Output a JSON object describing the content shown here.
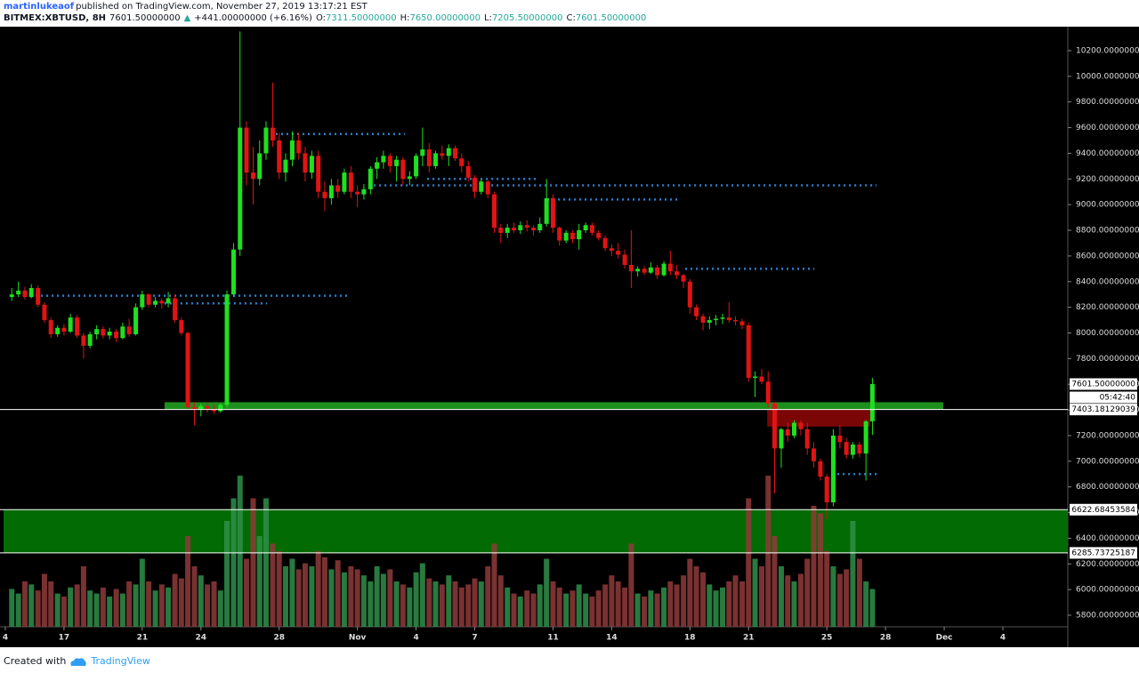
{
  "header": {
    "publisher": "martinlukeaof",
    "published": "published on TradingView.com, November 27, 2019 13:17:21 EST",
    "symbol": "BITMEX:XBTUSD, 8H",
    "last": "7601.50000000",
    "arrow": "▲",
    "change": "+441.00000000 (+6.16%)",
    "o_label": "O:",
    "o": "7311.50000000",
    "h_label": "H:",
    "h": "7650.00000000",
    "l_label": "L:",
    "l": "7205.50000000",
    "c_label": "C:",
    "c": "7601.50000000"
  },
  "footer": {
    "created": "Created with",
    "brand": "TradingView"
  },
  "chart_data": {
    "type": "candlestick",
    "up_color": "#1fe01f",
    "down_color": "#e01414",
    "volume_up_color": "#2f8f4a",
    "volume_down_color": "#8f3a3a",
    "x": [
      14.33,
      14.67,
      15,
      15.33,
      15.67,
      16,
      16.33,
      16.67,
      17,
      17.33,
      17.67,
      18,
      18.33,
      18.67,
      19,
      19.33,
      19.67,
      20,
      20.33,
      20.67,
      21,
      21.33,
      21.67,
      22,
      22.33,
      22.67,
      23,
      23.33,
      23.67,
      24,
      24.33,
      24.67,
      25,
      25.33,
      25.67,
      26,
      26.33,
      26.67,
      27,
      27.33,
      27.67,
      28,
      28.33,
      28.67,
      29,
      29.33,
      29.67,
      30,
      30.33,
      30.67,
      31,
      31.33,
      31.67,
      32,
      32.33,
      32.67,
      33,
      33.33,
      33.67,
      34,
      34.33,
      34.67,
      35,
      35.33,
      35.67,
      36,
      36.33,
      36.67,
      37,
      37.33,
      37.67,
      38,
      38.33,
      38.67,
      39,
      39.33,
      39.67,
      40,
      40.33,
      40.67,
      41,
      41.33,
      41.67,
      42,
      42.33,
      42.67,
      43,
      43.33,
      43.67,
      44,
      44.33,
      44.67,
      45,
      45.33,
      45.67,
      46,
      46.33,
      46.67,
      47,
      47.33,
      47.67,
      48,
      48.33,
      48.67,
      49,
      49.33,
      49.67,
      50,
      50.33,
      50.67,
      51,
      51.33,
      51.67,
      52,
      52.33,
      52.67,
      53,
      53.33,
      53.67,
      54,
      54.33,
      54.67,
      55,
      55.33,
      55.67,
      56,
      56.33,
      56.67,
      57,
      57.33,
      57.67,
      58,
      58.33
    ],
    "ohlc": [
      [
        8280,
        8350,
        8250,
        8300
      ],
      [
        8300,
        8400,
        8280,
        8330
      ],
      [
        8330,
        8360,
        8260,
        8280
      ],
      [
        8280,
        8380,
        8270,
        8350
      ],
      [
        8350,
        8370,
        8200,
        8220
      ],
      [
        8220,
        8240,
        8080,
        8100
      ],
      [
        8100,
        8120,
        7960,
        7990
      ],
      [
        7990,
        8060,
        7970,
        8040
      ],
      [
        8040,
        8070,
        7980,
        8010
      ],
      [
        8010,
        8150,
        8000,
        8120
      ],
      [
        8120,
        8140,
        7960,
        7980
      ],
      [
        7980,
        8000,
        7800,
        7900
      ],
      [
        7900,
        8010,
        7880,
        7990
      ],
      [
        7990,
        8060,
        7950,
        8030
      ],
      [
        8030,
        8050,
        7960,
        7980
      ],
      [
        7980,
        8040,
        7950,
        8010
      ],
      [
        8010,
        8030,
        7930,
        7960
      ],
      [
        7960,
        8080,
        7950,
        8050
      ],
      [
        8050,
        8110,
        7970,
        7990
      ],
      [
        7990,
        8230,
        7980,
        8200
      ],
      [
        8200,
        8330,
        8180,
        8300
      ],
      [
        8300,
        8310,
        8200,
        8220
      ],
      [
        8220,
        8280,
        8200,
        8250
      ],
      [
        8250,
        8270,
        8190,
        8230
      ],
      [
        8230,
        8320,
        8200,
        8270
      ],
      [
        8270,
        8300,
        8080,
        8100
      ],
      [
        8100,
        8120,
        7980,
        8000
      ],
      [
        8000,
        8010,
        7400,
        7420
      ],
      [
        7420,
        7460,
        7280,
        7400
      ],
      [
        7400,
        7450,
        7350,
        7430
      ],
      [
        7430,
        7460,
        7380,
        7410
      ],
      [
        7410,
        7440,
        7370,
        7390
      ],
      [
        7390,
        7450,
        7380,
        7440
      ],
      [
        7440,
        8330,
        7420,
        8300
      ],
      [
        8300,
        8700,
        8280,
        8650
      ],
      [
        8650,
        10350,
        8600,
        9600
      ],
      [
        9600,
        9650,
        9150,
        9250
      ],
      [
        9250,
        9450,
        9000,
        9200
      ],
      [
        9200,
        9500,
        9150,
        9400
      ],
      [
        9400,
        9650,
        9350,
        9600
      ],
      [
        9600,
        9950,
        9450,
        9500
      ],
      [
        9500,
        9560,
        9200,
        9250
      ],
      [
        9250,
        9400,
        9180,
        9350
      ],
      [
        9350,
        9570,
        9300,
        9500
      ],
      [
        9500,
        9560,
        9350,
        9400
      ],
      [
        9400,
        9450,
        9180,
        9250
      ],
      [
        9250,
        9420,
        9200,
        9380
      ],
      [
        9380,
        9420,
        9050,
        9100
      ],
      [
        9100,
        9180,
        8950,
        9050
      ],
      [
        9050,
        9200,
        9000,
        9150
      ],
      [
        9150,
        9200,
        9050,
        9100
      ],
      [
        9100,
        9280,
        9080,
        9250
      ],
      [
        9250,
        9300,
        9050,
        9100
      ],
      [
        9100,
        9150,
        8980,
        9080
      ],
      [
        9080,
        9160,
        9040,
        9120
      ],
      [
        9120,
        9300,
        9080,
        9280
      ],
      [
        9280,
        9370,
        9200,
        9330
      ],
      [
        9330,
        9420,
        9280,
        9380
      ],
      [
        9380,
        9400,
        9250,
        9300
      ],
      [
        9300,
        9380,
        9180,
        9350
      ],
      [
        9350,
        9370,
        9150,
        9200
      ],
      [
        9200,
        9260,
        9150,
        9220
      ],
      [
        9220,
        9400,
        9200,
        9380
      ],
      [
        9380,
        9600,
        9300,
        9430
      ],
      [
        9430,
        9480,
        9250,
        9300
      ],
      [
        9300,
        9420,
        9280,
        9400
      ],
      [
        9400,
        9460,
        9350,
        9380
      ],
      [
        9380,
        9470,
        9300,
        9440
      ],
      [
        9440,
        9460,
        9340,
        9360
      ],
      [
        9360,
        9400,
        9250,
        9300
      ],
      [
        9300,
        9340,
        9180,
        9210
      ],
      [
        9210,
        9230,
        9050,
        9100
      ],
      [
        9100,
        9200,
        9080,
        9180
      ],
      [
        9180,
        9190,
        9050,
        9080
      ],
      [
        9080,
        9100,
        8780,
        8820
      ],
      [
        8820,
        8850,
        8700,
        8780
      ],
      [
        8780,
        8850,
        8740,
        8820
      ],
      [
        8820,
        8860,
        8780,
        8800
      ],
      [
        8800,
        8870,
        8770,
        8840
      ],
      [
        8840,
        8880,
        8790,
        8820
      ],
      [
        8820,
        8840,
        8760,
        8800
      ],
      [
        8800,
        8900,
        8780,
        8850
      ],
      [
        8850,
        9200,
        8830,
        9050
      ],
      [
        9050,
        9080,
        8780,
        8820
      ],
      [
        8820,
        8830,
        8680,
        8720
      ],
      [
        8720,
        8800,
        8700,
        8780
      ],
      [
        8780,
        8800,
        8700,
        8730
      ],
      [
        8730,
        8850,
        8650,
        8800
      ],
      [
        8800,
        8860,
        8780,
        8840
      ],
      [
        8840,
        8860,
        8760,
        8780
      ],
      [
        8780,
        8800,
        8720,
        8740
      ],
      [
        8740,
        8760,
        8640,
        8660
      ],
      [
        8660,
        8690,
        8600,
        8640
      ],
      [
        8640,
        8700,
        8580,
        8610
      ],
      [
        8610,
        8650,
        8500,
        8530
      ],
      [
        8530,
        8800,
        8350,
        8480
      ],
      [
        8480,
        8520,
        8440,
        8500
      ],
      [
        8500,
        8520,
        8450,
        8470
      ],
      [
        8470,
        8550,
        8460,
        8510
      ],
      [
        8510,
        8530,
        8420,
        8450
      ],
      [
        8450,
        8560,
        8440,
        8540
      ],
      [
        8540,
        8640,
        8450,
        8480
      ],
      [
        8480,
        8530,
        8420,
        8450
      ],
      [
        8450,
        8460,
        8350,
        8400
      ],
      [
        8400,
        8420,
        8150,
        8200
      ],
      [
        8200,
        8220,
        8100,
        8130
      ],
      [
        8130,
        8150,
        8020,
        8080
      ],
      [
        8080,
        8130,
        8030,
        8100
      ],
      [
        8100,
        8140,
        8060,
        8110
      ],
      [
        8110,
        8150,
        8070,
        8120
      ],
      [
        8120,
        8240,
        8080,
        8100
      ],
      [
        8100,
        8130,
        8060,
        8090
      ],
      [
        8090,
        8110,
        8030,
        8060
      ],
      [
        8060,
        8080,
        7620,
        7650
      ],
      [
        7650,
        7700,
        7500,
        7660
      ],
      [
        7660,
        7720,
        7600,
        7620
      ],
      [
        7620,
        7700,
        7420,
        7450
      ],
      [
        7450,
        7460,
        6750,
        7100
      ],
      [
        7100,
        7260,
        6950,
        7250
      ],
      [
        7250,
        7300,
        7150,
        7200
      ],
      [
        7200,
        7320,
        7180,
        7300
      ],
      [
        7300,
        7320,
        7200,
        7250
      ],
      [
        7250,
        7300,
        7050,
        7100
      ],
      [
        7100,
        7150,
        6950,
        7000
      ],
      [
        7000,
        7020,
        6850,
        6880
      ],
      [
        6880,
        6900,
        6550,
        6680
      ],
      [
        6680,
        7250,
        6650,
        7200
      ],
      [
        7200,
        7280,
        7100,
        7150
      ],
      [
        7150,
        7180,
        7020,
        7050
      ],
      [
        7050,
        7150,
        7020,
        7130
      ],
      [
        7130,
        7150,
        7030,
        7060
      ],
      [
        7060,
        7320,
        6850,
        7311.5
      ],
      [
        7311.5,
        7650,
        7205.5,
        7601.5
      ]
    ],
    "volume": [
      25,
      22,
      30,
      28,
      24,
      35,
      30,
      22,
      20,
      26,
      28,
      40,
      24,
      22,
      26,
      20,
      25,
      22,
      30,
      28,
      45,
      30,
      24,
      28,
      26,
      35,
      32,
      60,
      40,
      34,
      28,
      30,
      24,
      70,
      85,
      100,
      45,
      85,
      60,
      85,
      55,
      50,
      40,
      45,
      38,
      42,
      40,
      50,
      46,
      38,
      44,
      36,
      40,
      38,
      34,
      30,
      40,
      35,
      38,
      30,
      28,
      26,
      36,
      42,
      32,
      30,
      28,
      34,
      30,
      26,
      28,
      32,
      30,
      40,
      55,
      34,
      26,
      22,
      20,
      24,
      22,
      28,
      45,
      30,
      26,
      22,
      24,
      28,
      22,
      20,
      24,
      28,
      34,
      30,
      26,
      55,
      22,
      20,
      24,
      22,
      26,
      30,
      28,
      34,
      45,
      40,
      36,
      28,
      24,
      26,
      30,
      34,
      30,
      85,
      45,
      40,
      100,
      60,
      40,
      34,
      30,
      35,
      45,
      80,
      75,
      50,
      40,
      35,
      38,
      70,
      45,
      30,
      25
    ],
    "xlim": [
      13.91,
      68.32
    ],
    "xticks": [
      {
        "value": 14,
        "label": "4"
      },
      17,
      21,
      24,
      28,
      {
        "value": 32,
        "label": "Nov"
      },
      {
        "value": 35,
        "label": "4"
      },
      {
        "value": 38,
        "label": "7"
      },
      {
        "value": 42,
        "label": "11"
      },
      {
        "value": 45,
        "label": "14"
      },
      {
        "value": 49,
        "label": "18"
      },
      {
        "value": 52,
        "label": "21"
      },
      {
        "value": 56,
        "label": "25"
      },
      {
        "value": 59,
        "label": "28"
      },
      {
        "value": 62,
        "label": "Dec"
      },
      {
        "value": 65,
        "label": "4"
      }
    ],
    "ylim": [
      5710,
      10373
    ],
    "yticks": [
      {
        "value": 5800,
        "label": "5800.00000000"
      },
      {
        "value": 6000,
        "label": "6000.00000000"
      },
      {
        "value": 6200,
        "label": "6200.00000000"
      },
      {
        "value": 6400,
        "label": "6400.00000000"
      },
      {
        "value": 6600,
        "label": "6600.00000000"
      },
      {
        "value": 6800,
        "label": "6800.00000000"
      },
      {
        "value": 7000,
        "label": "7000.00000000"
      },
      {
        "value": 7200,
        "label": "7200.00000000"
      },
      {
        "value": 7400,
        "label": "7400.00000000"
      },
      {
        "value": 7600,
        "label": "7600.00000000"
      },
      {
        "value": 7800,
        "label": "7800.00000000"
      },
      {
        "value": 8000,
        "label": "8000.00000000"
      },
      {
        "value": 8200,
        "label": "8200.00000000"
      },
      {
        "value": 8400,
        "label": "8400.00000000"
      },
      {
        "value": 8600,
        "label": "8600.00000000"
      },
      {
        "value": 8800,
        "label": "8800.00000000"
      },
      {
        "value": 9000,
        "label": "9000.00000000"
      },
      {
        "value": 9200,
        "label": "9200.00000000"
      },
      {
        "value": 9400,
        "label": "9400.00000000"
      },
      {
        "value": 9600,
        "label": "9600.00000000"
      },
      {
        "value": 9800,
        "label": "9800.00000000"
      },
      {
        "value": 10000,
        "label": "10000.00000000"
      },
      {
        "value": 10200,
        "label": "10200.00000000"
      }
    ],
    "zones": [
      {
        "ylim": [
          6285.73725187,
          6622.68453584
        ],
        "xlim": [
          13.91,
          68.32
        ],
        "color": "#036b03"
      },
      {
        "ylim": [
          7403.18129039,
          7460
        ],
        "xlim": [
          22.14,
          61.95
        ],
        "color": "#1d8f1d"
      },
      {
        "ylim": [
          7270,
          7403.18129039
        ],
        "xlim": [
          52.95,
          58.22
        ],
        "color": "#7a0606"
      }
    ],
    "trend_lines": [
      {
        "y": 8290,
        "x": [
          15.55,
          31.47
        ]
      },
      {
        "y": 8230,
        "x": [
          22.14,
          27.38
        ]
      },
      {
        "y": 9550,
        "x": [
          27.83,
          34.43
        ]
      },
      {
        "y": 9200,
        "x": [
          35.57,
          41.25
        ]
      },
      {
        "y": 9150,
        "x": [
          32.84,
          58.54
        ]
      },
      {
        "y": 9040,
        "x": [
          41.71,
          48.53
        ]
      },
      {
        "y": 8500,
        "x": [
          48.76,
          55.36
        ]
      },
      {
        "y": 6900,
        "x": [
          56.27,
          58.54
        ]
      }
    ],
    "trend_color": "#2a7fd0",
    "levels": [
      7403.18129039,
      6622.68453584,
      6285.73725187
    ],
    "last_price": {
      "value": 7601.5,
      "label": "7601.50000000"
    },
    "countdown": "05:42:40"
  }
}
